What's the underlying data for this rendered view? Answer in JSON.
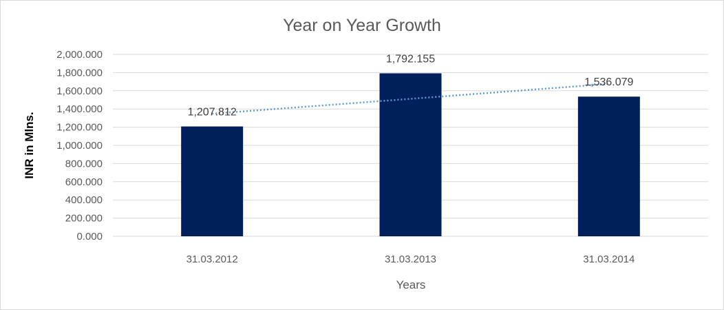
{
  "chart_data": {
    "type": "bar",
    "title": "Year on Year Growth",
    "xlabel": "Years",
    "ylabel": "INR in Mlns.",
    "categories": [
      "31.03.2012",
      "31.03.2013",
      "31.03.2014"
    ],
    "values": [
      1207.812,
      1792.155,
      1536.079
    ],
    "data_labels": [
      "1,207.812",
      "1,792.155",
      "1,536.079"
    ],
    "ylim": [
      0,
      2000
    ],
    "y_ticks": [
      "0.000",
      "200.000",
      "400.000",
      "600.000",
      "800.000",
      "1,000.000",
      "1,200.000",
      "1,400.000",
      "1,600.000",
      "1,800.000",
      "2,000.000"
    ],
    "y_tick_values": [
      0,
      200,
      400,
      600,
      800,
      1000,
      1200,
      1400,
      1600,
      1800,
      2000
    ],
    "trendline": {
      "type": "linear",
      "style": "dotted"
    },
    "grid": true,
    "legend": "none",
    "colors": {
      "bar": "#001f5b",
      "trendline": "#5b9bd5",
      "grid": "#d9d9d9",
      "text": "#595959"
    }
  }
}
